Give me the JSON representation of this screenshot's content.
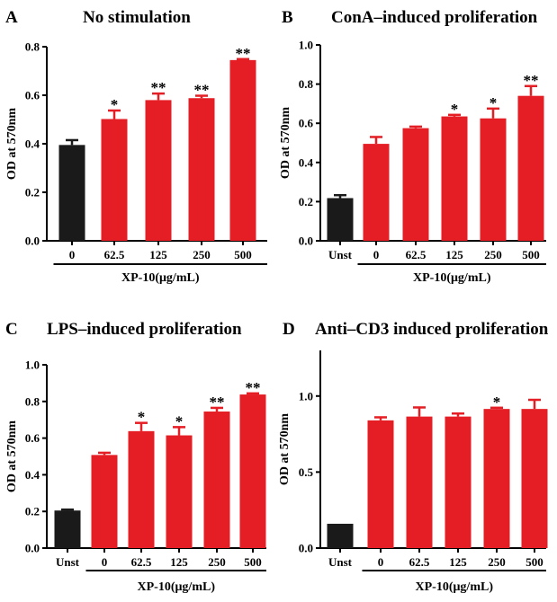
{
  "figure": {
    "background": "#ffffff"
  },
  "colors": {
    "control": "#1a1a1a",
    "treated": "#e51e25",
    "axis": "#000000"
  },
  "chart_data": [
    {
      "panel": "A",
      "type": "bar",
      "title": "No stimulation",
      "ylabel": "OD at 570nm",
      "xlabel": "XP-10(μg/mL)",
      "categories": [
        "0",
        "62.5",
        "125",
        "250",
        "500"
      ],
      "values": [
        0.395,
        0.502,
        0.58,
        0.588,
        0.745
      ],
      "errors": [
        0.02,
        0.035,
        0.027,
        0.01,
        0.004
      ],
      "significance": [
        "",
        "*",
        "**",
        "**",
        "**"
      ],
      "bar_colors": [
        "#1a1a1a",
        "#e51e25",
        "#e51e25",
        "#e51e25",
        "#e51e25"
      ],
      "ylim": [
        0,
        0.8
      ],
      "yticks": [
        "0.0",
        "0.2",
        "0.4",
        "0.6",
        "0.8"
      ],
      "group_underline_from": 0
    },
    {
      "panel": "B",
      "type": "bar",
      "title": "ConA–induced proliferation",
      "ylabel": "OD at 570nm",
      "xlabel": "XP-10(μg/mL)",
      "categories": [
        "Unst",
        "0",
        "62.5",
        "125",
        "250",
        "500"
      ],
      "values": [
        0.218,
        0.495,
        0.575,
        0.635,
        0.625,
        0.74
      ],
      "errors": [
        0.015,
        0.035,
        0.008,
        0.008,
        0.05,
        0.05
      ],
      "significance": [
        "",
        "",
        "",
        "*",
        "*",
        "**"
      ],
      "bar_colors": [
        "#1a1a1a",
        "#e51e25",
        "#e51e25",
        "#e51e25",
        "#e51e25",
        "#e51e25"
      ],
      "ylim": [
        0,
        1.0
      ],
      "yticks": [
        "0.0",
        "0.2",
        "0.4",
        "0.6",
        "0.8",
        "1.0"
      ],
      "group_underline_from": 1
    },
    {
      "panel": "C",
      "type": "bar",
      "title": "LPS–induced proliferation",
      "ylabel": "OD at 570nm",
      "xlabel": "XP-10(μg/mL)",
      "categories": [
        "Unst",
        "0",
        "62.5",
        "125",
        "250",
        "500"
      ],
      "values": [
        0.205,
        0.508,
        0.638,
        0.615,
        0.745,
        0.838
      ],
      "errors": [
        0.005,
        0.012,
        0.045,
        0.045,
        0.02,
        0.006
      ],
      "significance": [
        "",
        "",
        "*",
        "*",
        "**",
        "**"
      ],
      "bar_colors": [
        "#1a1a1a",
        "#e51e25",
        "#e51e25",
        "#e51e25",
        "#e51e25",
        "#e51e25"
      ],
      "ylim": [
        0,
        1.0
      ],
      "yticks": [
        "0.0",
        "0.2",
        "0.4",
        "0.6",
        "0.8",
        "1.0"
      ],
      "group_underline_from": 1
    },
    {
      "panel": "D",
      "type": "bar",
      "title": "Anti–CD3 induced proliferation",
      "ylabel": "OD at 570nm",
      "xlabel": "XP-10(μg/mL)",
      "categories": [
        "Unst",
        "0",
        "62.5",
        "125",
        "250",
        "500"
      ],
      "values": [
        0.16,
        0.84,
        0.865,
        0.865,
        0.915,
        0.915
      ],
      "errors": [
        0.0,
        0.02,
        0.06,
        0.02,
        0.008,
        0.06
      ],
      "significance": [
        "",
        "",
        "",
        "",
        "*",
        ""
      ],
      "bar_colors": [
        "#1a1a1a",
        "#e51e25",
        "#e51e25",
        "#e51e25",
        "#e51e25",
        "#e51e25"
      ],
      "ylim": [
        0,
        1.3
      ],
      "yticks": [
        "0.0",
        "0.5",
        "1.0"
      ],
      "ytick_values": [
        0,
        0.5,
        1.0
      ],
      "group_underline_from": 1
    }
  ]
}
